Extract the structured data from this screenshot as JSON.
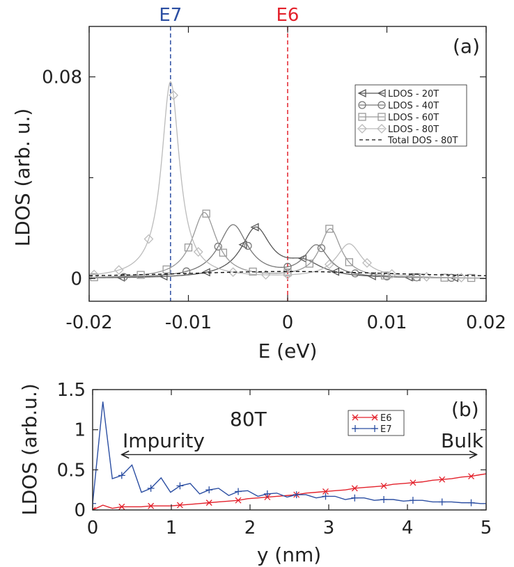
{
  "colors": {
    "e6": "#e3212b",
    "e7": "#2b4ea2",
    "ldos20": "#555555",
    "ldos40": "#777777",
    "ldos60": "#999999",
    "ldos80": "#bbbbbb",
    "total": "#111111"
  },
  "chart_data": [
    {
      "type": "line",
      "panel_label": "(a)",
      "xlabel": "E (eV)",
      "ylabel": "LDOS (arb. u.)",
      "xlim": [
        -0.02,
        0.02
      ],
      "ylim": [
        -0.009,
        0.1
      ],
      "x_ticks": [
        -0.02,
        -0.01,
        0,
        0.01,
        0.02
      ],
      "x_tick_labels": [
        "-0.02",
        "-0.01",
        "0",
        "0.01",
        "0.02"
      ],
      "y_ticks": [
        0,
        0.08
      ],
      "y_tick_labels": [
        "0",
        "0.08"
      ],
      "y_minor_ticks": [
        0.04
      ],
      "markers": [
        {
          "label": "E7",
          "x": -0.0118,
          "color": "#2b4ea2"
        },
        {
          "label": "E6",
          "x": 0.0,
          "color": "#e3212b"
        }
      ],
      "legend": {
        "position": "right",
        "entries": [
          "LDOS - 20T",
          "LDOS - 40T",
          "LDOS - 60T",
          "LDOS - 80T",
          "Total DOS - 80T"
        ]
      },
      "series": [
        {
          "name": "LDOS - 20T",
          "marker": "triangle-left",
          "color": "#555555",
          "peaks": [
            {
              "x0": -0.0032,
              "a": 0.0195,
              "g": 0.0018
            },
            {
              "x0": 0.0016,
              "a": 0.0055,
              "g": 0.0022
            }
          ],
          "marker_x": [
            -0.0168,
            -0.0125,
            -0.0082,
            -0.0045,
            -0.0033,
            0.0015,
            0.0048,
            0.0085,
            0.0122,
            0.0168
          ]
        },
        {
          "name": "LDOS - 40T",
          "marker": "circle",
          "color": "#777777",
          "peaks": [
            {
              "x0": -0.0055,
              "a": 0.021,
              "g": 0.0018
            },
            {
              "x0": 0.0029,
              "a": 0.0125,
              "g": 0.0015
            }
          ],
          "marker_x": [
            -0.0165,
            -0.0102,
            -0.007,
            -0.004,
            0.0,
            0.0034,
            0.0068,
            0.01,
            0.013,
            0.0165
          ]
        },
        {
          "name": "LDOS - 60T",
          "marker": "square",
          "color": "#999999",
          "peaks": [
            {
              "x0": -0.0084,
              "a": 0.026,
              "g": 0.0015
            },
            {
              "x0": 0.0043,
              "a": 0.0195,
              "g": 0.0013
            }
          ],
          "marker_x": [
            -0.0195,
            -0.0148,
            -0.0122,
            -0.01,
            -0.0082,
            -0.0065,
            -0.0035,
            0.0,
            0.0022,
            0.0042,
            0.0062,
            0.0098,
            0.013,
            0.0158,
            0.0185
          ]
        },
        {
          "name": "LDOS - 80T",
          "marker": "diamond",
          "color": "#bbbbbb",
          "peaks": [
            {
              "x0": -0.0118,
              "a": 0.078,
              "g": 0.0011
            },
            {
              "x0": 0.0062,
              "a": 0.0135,
              "g": 0.0016
            }
          ],
          "marker_x": [
            -0.0195,
            -0.017,
            -0.014,
            -0.0115,
            -0.009,
            -0.0055,
            -0.0022,
            0.0,
            0.0042,
            0.008,
            0.0105,
            0.014,
            0.0175
          ]
        },
        {
          "name": "Total DOS - 80T",
          "dashed": true,
          "color": "#111111",
          "func": {
            "x0": 0.0,
            "a": 0.0028,
            "g": 0.0163
          }
        }
      ]
    },
    {
      "type": "line",
      "panel_label": "(b)",
      "xlabel": "y (nm)",
      "ylabel": "LDOS (arb.u.)",
      "xlim": [
        0,
        5
      ],
      "ylim": [
        0,
        1.5
      ],
      "x_ticks": [
        0,
        1,
        2,
        3,
        4,
        5
      ],
      "x_tick_labels": [
        "0",
        "1",
        "2",
        "3",
        "4",
        "5"
      ],
      "y_ticks": [
        0,
        0.5,
        1,
        1.5
      ],
      "y_tick_labels": [
        "0",
        "0.5",
        "1",
        "1.5"
      ],
      "annotations": {
        "field": "80T",
        "left": "Impurity",
        "right": "Bulk"
      },
      "arrow": {
        "x_start": 0.37,
        "x_end": 4.88,
        "y": 0.69
      },
      "legend": {
        "position": "top-right",
        "entries": [
          "E6",
          "E7"
        ]
      },
      "series": [
        {
          "name": "E6",
          "marker": "x",
          "color": "#e3212b",
          "x": [
            0,
            0.13,
            0.25,
            0.37,
            0.5,
            0.62,
            0.74,
            0.87,
            0.99,
            1.11,
            1.24,
            1.36,
            1.48,
            1.6,
            1.73,
            1.85,
            1.97,
            2.1,
            2.22,
            2.34,
            2.47,
            2.59,
            2.71,
            2.84,
            2.96,
            3.08,
            3.21,
            3.33,
            3.45,
            3.58,
            3.7,
            3.82,
            3.95,
            4.07,
            4.19,
            4.32,
            4.44,
            4.56,
            4.69,
            4.81,
            4.93,
            5.0
          ],
          "y": [
            0.0,
            0.06,
            0.02,
            0.04,
            0.04,
            0.04,
            0.05,
            0.05,
            0.05,
            0.06,
            0.07,
            0.08,
            0.09,
            0.1,
            0.11,
            0.12,
            0.14,
            0.15,
            0.16,
            0.17,
            0.18,
            0.19,
            0.21,
            0.22,
            0.23,
            0.24,
            0.25,
            0.27,
            0.28,
            0.29,
            0.3,
            0.32,
            0.33,
            0.34,
            0.35,
            0.37,
            0.38,
            0.39,
            0.41,
            0.42,
            0.44,
            0.45
          ],
          "marker_x": [
            0.0,
            0.37,
            0.74,
            1.11,
            1.48,
            1.85,
            2.22,
            2.59,
            2.96,
            3.33,
            3.7,
            4.07,
            4.44,
            4.81
          ]
        },
        {
          "name": "E7",
          "marker": "plus",
          "color": "#2b4ea2",
          "x": [
            0,
            0.13,
            0.25,
            0.37,
            0.5,
            0.62,
            0.74,
            0.87,
            0.99,
            1.11,
            1.24,
            1.36,
            1.48,
            1.6,
            1.73,
            1.85,
            1.97,
            2.1,
            2.22,
            2.34,
            2.47,
            2.59,
            2.71,
            2.84,
            2.96,
            3.08,
            3.21,
            3.33,
            3.45,
            3.58,
            3.7,
            3.82,
            3.95,
            4.07,
            4.19,
            4.32,
            4.44,
            4.56,
            4.69,
            4.81,
            4.93,
            5.0
          ],
          "y": [
            0.08,
            1.35,
            0.39,
            0.43,
            0.56,
            0.22,
            0.27,
            0.4,
            0.22,
            0.3,
            0.33,
            0.2,
            0.25,
            0.27,
            0.18,
            0.23,
            0.24,
            0.17,
            0.2,
            0.21,
            0.16,
            0.19,
            0.19,
            0.15,
            0.17,
            0.17,
            0.13,
            0.15,
            0.15,
            0.12,
            0.13,
            0.13,
            0.11,
            0.12,
            0.12,
            0.1,
            0.1,
            0.1,
            0.09,
            0.09,
            0.08,
            0.08
          ],
          "marker_x": [
            0.0,
            0.37,
            0.74,
            1.11,
            1.48,
            1.85,
            2.22,
            2.59,
            2.96,
            3.33,
            3.7,
            4.07,
            4.44,
            4.81
          ]
        }
      ]
    }
  ]
}
